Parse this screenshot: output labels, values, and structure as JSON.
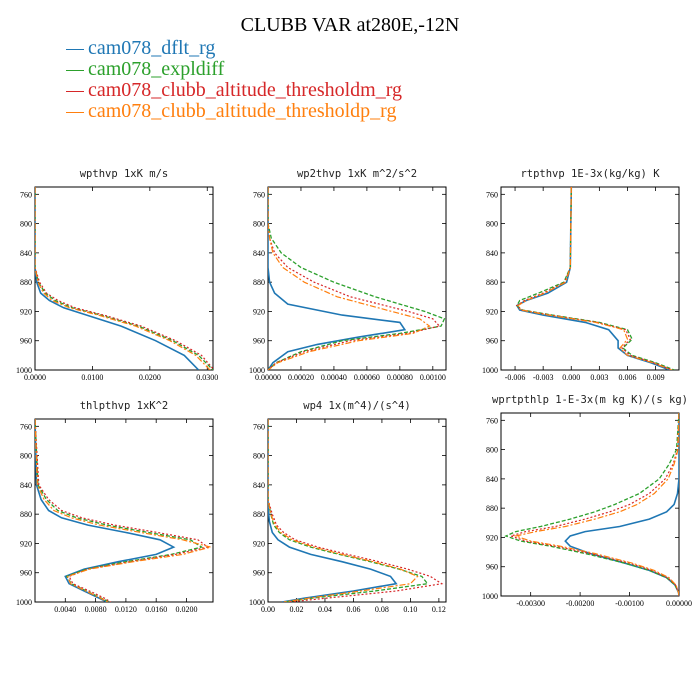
{
  "title": "CLUBB VAR at280E,-12N",
  "legend": [
    {
      "name": "cam078_dflt_rg",
      "color": "#1f77b4"
    },
    {
      "name": "cam078_expldiff",
      "color": "#2ca02c"
    },
    {
      "name": "cam078_clubb_altitude_thresholdm_rg",
      "color": "#d62728"
    },
    {
      "name": "cam078_clubb_altitude_thresholdp_rg",
      "color": "#ff7f0e"
    }
  ],
  "chart_data": [
    {
      "type": "line",
      "title": "wpthvp  1xK m/s",
      "xlim": [
        0,
        0.031
      ],
      "xticks": [
        "0.0000",
        "0.0100",
        "0.0200",
        "0.0300"
      ],
      "xtick_values": [
        0,
        0.01,
        0.02,
        0.03
      ],
      "ylim": [
        1000,
        750
      ],
      "yticks": [
        "760",
        "800",
        "840",
        "880",
        "920",
        "960",
        "1000"
      ],
      "ytick_values": [
        760,
        800,
        840,
        880,
        920,
        960,
        1000
      ],
      "series": [
        {
          "y": [
            750,
            860,
            880,
            895,
            905,
            915,
            925,
            940,
            960,
            980,
            1000
          ],
          "x": [
            0,
            0,
            0.0003,
            0.001,
            0.0025,
            0.005,
            0.009,
            0.015,
            0.021,
            0.026,
            0.0285
          ]
        },
        {
          "y": [
            750,
            860,
            880,
            895,
            905,
            915,
            925,
            940,
            960,
            980,
            1000
          ],
          "x": [
            0,
            0,
            0.0006,
            0.0018,
            0.0035,
            0.0065,
            0.0115,
            0.018,
            0.024,
            0.0285,
            0.031
          ]
        },
        {
          "y": [
            750,
            860,
            880,
            895,
            905,
            915,
            925,
            940,
            960,
            980,
            1000
          ],
          "x": [
            0,
            0,
            0.0008,
            0.002,
            0.004,
            0.007,
            0.012,
            0.0185,
            0.0245,
            0.029,
            0.0312
          ]
        },
        {
          "y": [
            750,
            860,
            880,
            895,
            905,
            915,
            925,
            940,
            960,
            980,
            1000
          ],
          "x": [
            0,
            0,
            0.0005,
            0.0015,
            0.003,
            0.006,
            0.011,
            0.0175,
            0.0235,
            0.028,
            0.0305
          ]
        }
      ]
    },
    {
      "type": "line",
      "title": "wp2thvp  1xK m^2/s^2",
      "xlim": [
        0,
        0.00108
      ],
      "xticks": [
        "0.00000",
        "0.00020",
        "0.00040",
        "0.00060",
        "0.00080",
        "0.00100"
      ],
      "xtick_values": [
        0,
        0.0002,
        0.0004,
        0.0006,
        0.0008,
        0.001
      ],
      "ylim": [
        1000,
        750
      ],
      "yticks": [
        "760",
        "800",
        "840",
        "880",
        "920",
        "960",
        "1000"
      ],
      "ytick_values": [
        760,
        800,
        840,
        880,
        920,
        960,
        1000
      ],
      "series": [
        {
          "y": [
            750,
            860,
            880,
            895,
            910,
            925,
            935,
            945,
            955,
            965,
            975,
            990,
            1000
          ],
          "x": [
            0,
            0,
            1e-05,
            4e-05,
            0.00012,
            0.00045,
            0.0008,
            0.00083,
            0.00055,
            0.0003,
            0.00012,
            3e-05,
            0
          ],
          "dash": ""
        },
        {
          "y": [
            750,
            800,
            820,
            840,
            860,
            880,
            900,
            920,
            930,
            940,
            950,
            960,
            975,
            990,
            1000
          ],
          "x": [
            0,
            0,
            2e-05,
            8e-05,
            0.0002,
            0.0004,
            0.00065,
            0.00095,
            0.00107,
            0.00105,
            0.0008,
            0.00045,
            0.0002,
            5e-05,
            0
          ]
        },
        {
          "y": [
            750,
            800,
            820,
            840,
            860,
            880,
            900,
            920,
            930,
            940,
            950,
            960,
            975,
            990,
            1000
          ],
          "x": [
            0,
            0,
            1e-05,
            4e-05,
            0.00012,
            0.00028,
            0.0005,
            0.00085,
            0.001,
            0.00104,
            0.00085,
            0.0005,
            0.00022,
            5e-05,
            0
          ]
        },
        {
          "y": [
            750,
            800,
            820,
            840,
            860,
            880,
            900,
            920,
            930,
            940,
            950,
            960,
            975,
            990,
            1000
          ],
          "x": [
            0,
            0,
            1e-05,
            3e-05,
            9e-05,
            0.00022,
            0.00042,
            0.00075,
            0.00092,
            0.00098,
            0.00088,
            0.00055,
            0.00025,
            6e-05,
            0
          ]
        }
      ]
    },
    {
      "type": "line",
      "title": "rtpthvp  1E-3x(kg/kg) K",
      "xlim": [
        -0.0075,
        0.0115
      ],
      "xticks": [
        "-0.006",
        "-0.003",
        "0.000",
        "0.003",
        "0.006",
        "0.009"
      ],
      "xtick_values": [
        -0.006,
        -0.003,
        0,
        0.003,
        0.006,
        0.009
      ],
      "ylim": [
        1000,
        750
      ],
      "yticks": [
        "760",
        "800",
        "840",
        "880",
        "920",
        "960",
        "1000"
      ],
      "ytick_values": [
        760,
        800,
        840,
        880,
        920,
        960,
        1000
      ],
      "series": [
        {
          "y": [
            750,
            860,
            880,
            895,
            905,
            912,
            918,
            925,
            935,
            945,
            960,
            970,
            980,
            990,
            1000
          ],
          "x": [
            0,
            -0.0001,
            -0.0005,
            -0.0025,
            -0.0048,
            -0.0058,
            -0.0055,
            -0.003,
            0.0015,
            0.004,
            0.005,
            0.005,
            0.006,
            0.0085,
            0.0105
          ]
        },
        {
          "y": [
            750,
            860,
            880,
            895,
            905,
            912,
            918,
            925,
            935,
            945,
            958,
            970,
            980,
            990,
            1000
          ],
          "x": [
            0,
            -0.0001,
            -0.0008,
            -0.0035,
            -0.0055,
            -0.0058,
            -0.0052,
            -0.002,
            0.003,
            0.006,
            0.0065,
            0.0055,
            0.0065,
            0.009,
            0.011
          ]
        },
        {
          "y": [
            750,
            860,
            880,
            895,
            905,
            912,
            918,
            925,
            935,
            945,
            958,
            970,
            980,
            990,
            1000
          ],
          "x": [
            0,
            -0.0001,
            -0.0007,
            -0.003,
            -0.005,
            -0.0058,
            -0.0053,
            -0.0022,
            0.0028,
            0.0058,
            0.0063,
            0.0054,
            0.0063,
            0.0088,
            0.0108
          ]
        },
        {
          "y": [
            750,
            860,
            880,
            895,
            905,
            912,
            918,
            925,
            935,
            945,
            958,
            970,
            980,
            990,
            1000
          ],
          "x": [
            0,
            -0.0001,
            -0.0006,
            -0.0028,
            -0.0048,
            -0.0057,
            -0.0054,
            -0.0024,
            0.0026,
            0.0056,
            0.006,
            0.0052,
            0.006,
            0.0087,
            0.0107
          ]
        }
      ]
    },
    {
      "type": "line",
      "title": "thlpthvp  1xK^2",
      "xlim": [
        0,
        0.0235
      ],
      "xticks": [
        "0.0040",
        "0.0080",
        "0.0120",
        "0.0160",
        "0.0200"
      ],
      "xtick_values": [
        0.004,
        0.008,
        0.012,
        0.016,
        0.02
      ],
      "ylim": [
        1000,
        750
      ],
      "yticks": [
        "760",
        "800",
        "840",
        "880",
        "920",
        "960",
        "1000"
      ],
      "ytick_values": [
        760,
        800,
        840,
        880,
        920,
        960,
        1000
      ],
      "series": [
        {
          "y": [
            750,
            840,
            860,
            875,
            885,
            895,
            905,
            915,
            925,
            935,
            945,
            955,
            965,
            975,
            985,
            995,
            1000
          ],
          "x": [
            0,
            0.0002,
            0.0008,
            0.0018,
            0.0035,
            0.007,
            0.012,
            0.0165,
            0.0183,
            0.016,
            0.011,
            0.0065,
            0.004,
            0.0045,
            0.0065,
            0.0085,
            0.0095
          ]
        },
        {
          "y": [
            750,
            840,
            860,
            875,
            885,
            895,
            905,
            915,
            925,
            935,
            945,
            955,
            965,
            975,
            985,
            995,
            1000
          ],
          "x": [
            0,
            0.0004,
            0.0015,
            0.003,
            0.0055,
            0.0095,
            0.015,
            0.0205,
            0.022,
            0.018,
            0.012,
            0.0068,
            0.0042,
            0.0048,
            0.0068,
            0.0088,
            0.0098
          ]
        },
        {
          "y": [
            750,
            840,
            860,
            875,
            885,
            895,
            905,
            915,
            925,
            935,
            945,
            955,
            965,
            975,
            985,
            995,
            1000
          ],
          "x": [
            0,
            0.0005,
            0.0018,
            0.0035,
            0.0062,
            0.0105,
            0.0162,
            0.0215,
            0.0228,
            0.0185,
            0.0125,
            0.007,
            0.0045,
            0.005,
            0.0072,
            0.0092,
            0.01
          ]
        },
        {
          "y": [
            750,
            840,
            860,
            875,
            885,
            895,
            905,
            915,
            925,
            935,
            945,
            955,
            965,
            975,
            985,
            995,
            1000
          ],
          "x": [
            0,
            0.0003,
            0.0012,
            0.0025,
            0.0048,
            0.0085,
            0.014,
            0.0195,
            0.0232,
            0.0195,
            0.013,
            0.0072,
            0.0043,
            0.0047,
            0.0067,
            0.0087,
            0.0096
          ]
        }
      ]
    },
    {
      "type": "line",
      "title": "wp4  1x(m^4)/(s^4)",
      "xlim": [
        0,
        0.125
      ],
      "xticks": [
        "0.00",
        "0.02",
        "0.04",
        "0.06",
        "0.08",
        "0.10",
        "0.12"
      ],
      "xtick_values": [
        0,
        0.02,
        0.04,
        0.06,
        0.08,
        0.1,
        0.12
      ],
      "ylim": [
        1000,
        750
      ],
      "yticks": [
        "760",
        "800",
        "840",
        "880",
        "920",
        "960",
        "1000"
      ],
      "ytick_values": [
        760,
        800,
        840,
        880,
        920,
        960,
        1000
      ],
      "series": [
        {
          "y": [
            750,
            870,
            890,
            905,
            915,
            925,
            935,
            945,
            955,
            965,
            975,
            985,
            995,
            1000
          ],
          "x": [
            0,
            0,
            0.001,
            0.003,
            0.007,
            0.015,
            0.03,
            0.052,
            0.072,
            0.086,
            0.09,
            0.06,
            0.025,
            0.01
          ]
        },
        {
          "y": [
            750,
            860,
            880,
            895,
            905,
            915,
            925,
            935,
            945,
            955,
            965,
            975,
            985,
            995,
            1000
          ],
          "x": [
            0,
            0,
            0.002,
            0.004,
            0.008,
            0.015,
            0.03,
            0.05,
            0.072,
            0.092,
            0.108,
            0.112,
            0.075,
            0.03,
            0.012
          ]
        },
        {
          "y": [
            750,
            860,
            880,
            895,
            905,
            915,
            925,
            935,
            945,
            955,
            965,
            975,
            985,
            995,
            1000
          ],
          "x": [
            0,
            0,
            0.003,
            0.006,
            0.011,
            0.019,
            0.035,
            0.056,
            0.078,
            0.098,
            0.114,
            0.122,
            0.09,
            0.04,
            0.015
          ]
        },
        {
          "y": [
            750,
            860,
            880,
            895,
            905,
            915,
            925,
            935,
            945,
            955,
            965,
            975,
            985,
            995,
            1000
          ],
          "x": [
            0,
            0,
            0.002,
            0.005,
            0.009,
            0.017,
            0.032,
            0.052,
            0.074,
            0.093,
            0.105,
            0.1,
            0.065,
            0.028,
            0.011
          ]
        }
      ]
    },
    {
      "type": "line",
      "title": "wprtpthlp  1-E-3x(m kg K)/(s kg)",
      "xlim": [
        -0.0036,
        0
      ],
      "xticks": [
        "-0.00300",
        "-0.00200",
        "-0.00100",
        "0.00000"
      ],
      "xtick_values": [
        -0.003,
        -0.002,
        -0.001,
        0
      ],
      "ylim": [
        1000,
        750
      ],
      "yticks": [
        "760",
        "800",
        "840",
        "880",
        "920",
        "960",
        "1000"
      ],
      "ytick_values": [
        760,
        800,
        840,
        880,
        920,
        960,
        1000
      ],
      "series": [
        {
          "y": [
            750,
            840,
            860,
            875,
            885,
            895,
            905,
            912,
            918,
            925,
            932,
            942,
            955,
            965,
            975,
            985,
            995,
            1000
          ],
          "x": [
            0,
            0,
            -3e-05,
            -0.0001,
            -0.00025,
            -0.0006,
            -0.0012,
            -0.0019,
            -0.0022,
            -0.0023,
            -0.0022,
            -0.0018,
            -0.0011,
            -0.0006,
            -0.00025,
            -8e-05,
            -1e-05,
            0
          ]
        },
        {
          "y": [
            750,
            800,
            820,
            840,
            860,
            875,
            885,
            895,
            905,
            912,
            918,
            925,
            932,
            942,
            955,
            965,
            975,
            985,
            995,
            1000
          ],
          "x": [
            0,
            -5e-05,
            -0.0002,
            -0.0004,
            -0.0008,
            -0.0013,
            -0.0017,
            -0.0022,
            -0.0028,
            -0.0033,
            -0.0035,
            -0.0032,
            -0.0026,
            -0.0019,
            -0.0011,
            -0.0006,
            -0.00025,
            -8e-05,
            -1e-05,
            0
          ]
        },
        {
          "y": [
            750,
            800,
            820,
            840,
            860,
            875,
            885,
            895,
            905,
            912,
            918,
            925,
            932,
            942,
            955,
            965,
            975,
            985,
            995,
            1000
          ],
          "x": [
            0,
            -3e-05,
            -0.00012,
            -0.00028,
            -0.0006,
            -0.001,
            -0.0014,
            -0.0019,
            -0.0025,
            -0.0031,
            -0.0034,
            -0.0031,
            -0.0025,
            -0.0018,
            -0.001,
            -0.00055,
            -0.00023,
            -7e-05,
            -1e-05,
            0
          ]
        },
        {
          "y": [
            750,
            800,
            820,
            840,
            860,
            875,
            885,
            895,
            905,
            912,
            918,
            925,
            932,
            942,
            955,
            965,
            975,
            985,
            995,
            1000
          ],
          "x": [
            0,
            -2e-05,
            -0.0001,
            -0.00022,
            -0.0005,
            -0.00085,
            -0.0012,
            -0.0017,
            -0.0023,
            -0.0029,
            -0.0033,
            -0.003,
            -0.0024,
            -0.0017,
            -0.00095,
            -0.0005,
            -0.0002,
            -6e-05,
            -1e-05,
            0
          ]
        }
      ]
    }
  ]
}
